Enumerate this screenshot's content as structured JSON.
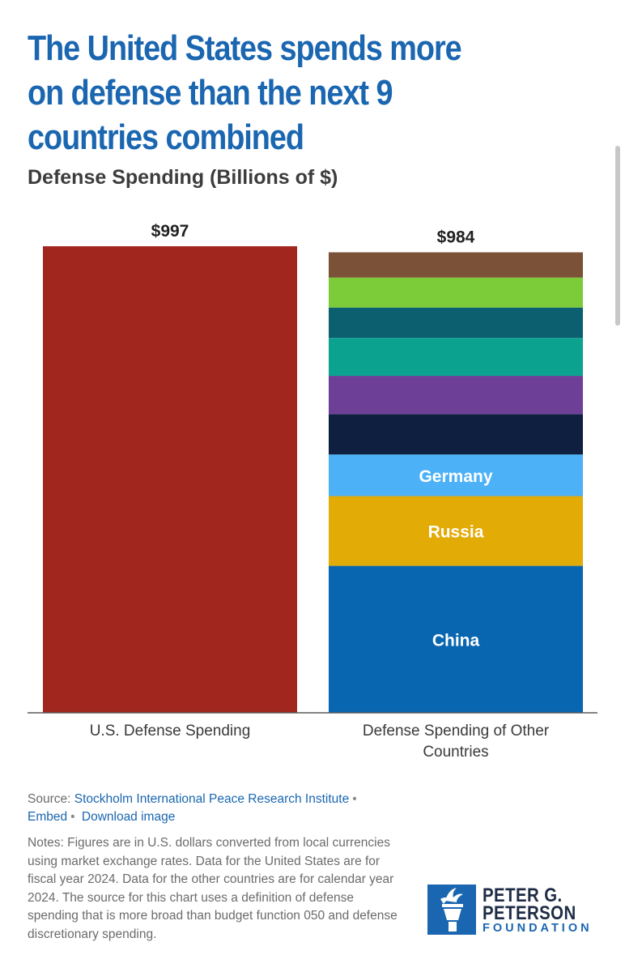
{
  "title": "The United States spends more on defense than the next 9 countries combined",
  "subtitle": "Defense Spending (Billions of $)",
  "colors": {
    "title": "#1a66b0",
    "us_bar": "#a0261e",
    "link": "#1a66b0"
  },
  "chart_data": {
    "type": "bar",
    "stacked": true,
    "categories": [
      "U.S. Defense Spending",
      "Defense Spending of Other Countries"
    ],
    "totals": [
      997,
      984
    ],
    "total_labels": [
      "$997",
      "$984"
    ],
    "ylim": [
      0,
      997
    ],
    "grid": false,
    "segments": [
      {
        "bar": 0,
        "label": "",
        "value": 997,
        "color": "#a0261e"
      },
      {
        "bar": 1,
        "label": "China",
        "value": 314,
        "color": "#0866b0"
      },
      {
        "bar": 1,
        "label": "Russia",
        "value": 149,
        "color": "#e3ab06"
      },
      {
        "bar": 1,
        "label": "Germany",
        "value": 89,
        "color": "#4cb1f7"
      },
      {
        "bar": 1,
        "label": "",
        "value": 86,
        "color": "#0f1f3f"
      },
      {
        "bar": 1,
        "label": "",
        "value": 82,
        "color": "#6d3f96"
      },
      {
        "bar": 1,
        "label": "",
        "value": 81,
        "color": "#0ba390"
      },
      {
        "bar": 1,
        "label": "",
        "value": 65,
        "color": "#0c5f6e"
      },
      {
        "bar": 1,
        "label": "",
        "value": 64,
        "color": "#7bcc38"
      },
      {
        "bar": 1,
        "label": "",
        "value": 54,
        "color": "#7b5237"
      }
    ]
  },
  "source": {
    "prefix": "Source:",
    "link": "Stockholm International Peace Research Institute",
    "embed": "Embed",
    "download": "Download image"
  },
  "notes": "Notes: Figures are in U.S. dollars converted from local currencies using market exchange rates. Data for the United States are for fiscal year 2024. Data for the other countries are for calendar year 2024. The source for this chart uses a definition of defense spending that is more broad than budget function 050 and defense discretionary spending.",
  "logo": {
    "line1": "PETER G.",
    "line2": "PETERSON",
    "line3": "FOUNDATION",
    "icon": "torch-icon"
  }
}
